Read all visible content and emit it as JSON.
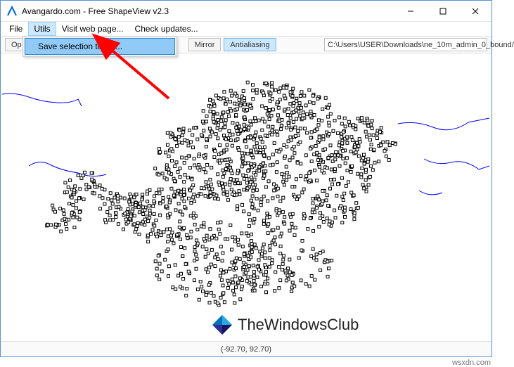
{
  "window": {
    "title": "Avangardo.com - Free ShapeView v2.3",
    "border_color": "#5a8fd6"
  },
  "menubar": {
    "items": [
      "File",
      "Utils",
      "Visit web page...",
      "Check updates..."
    ],
    "active_index": 1
  },
  "dropdown": {
    "items": [
      "Save selection to file..."
    ],
    "highlight_bg": "#91c9f7",
    "highlight_border": "#2a8dd4"
  },
  "toolbar": {
    "btn_open": "Op",
    "btn_mirror": "Mirror",
    "btn_antialias": "Antialiasing",
    "path_value": "C:\\Users\\USER\\Downloads\\ne_10m_admin_0_bound/"
  },
  "statusbar": {
    "coords": "(-92.70, 92.70)"
  },
  "watermark": {
    "text": "TheWindowsClub",
    "logo_colors": [
      "#29abe2",
      "#0071bc",
      "#1b1464",
      "#2e3192"
    ]
  },
  "footer_text": "wsxdn.com",
  "annotation_arrow": {
    "color": "#ff0000"
  },
  "shape_colors": {
    "lines": "#0000ff",
    "points_stroke": "#000000",
    "points_fill": "#ffffff"
  }
}
